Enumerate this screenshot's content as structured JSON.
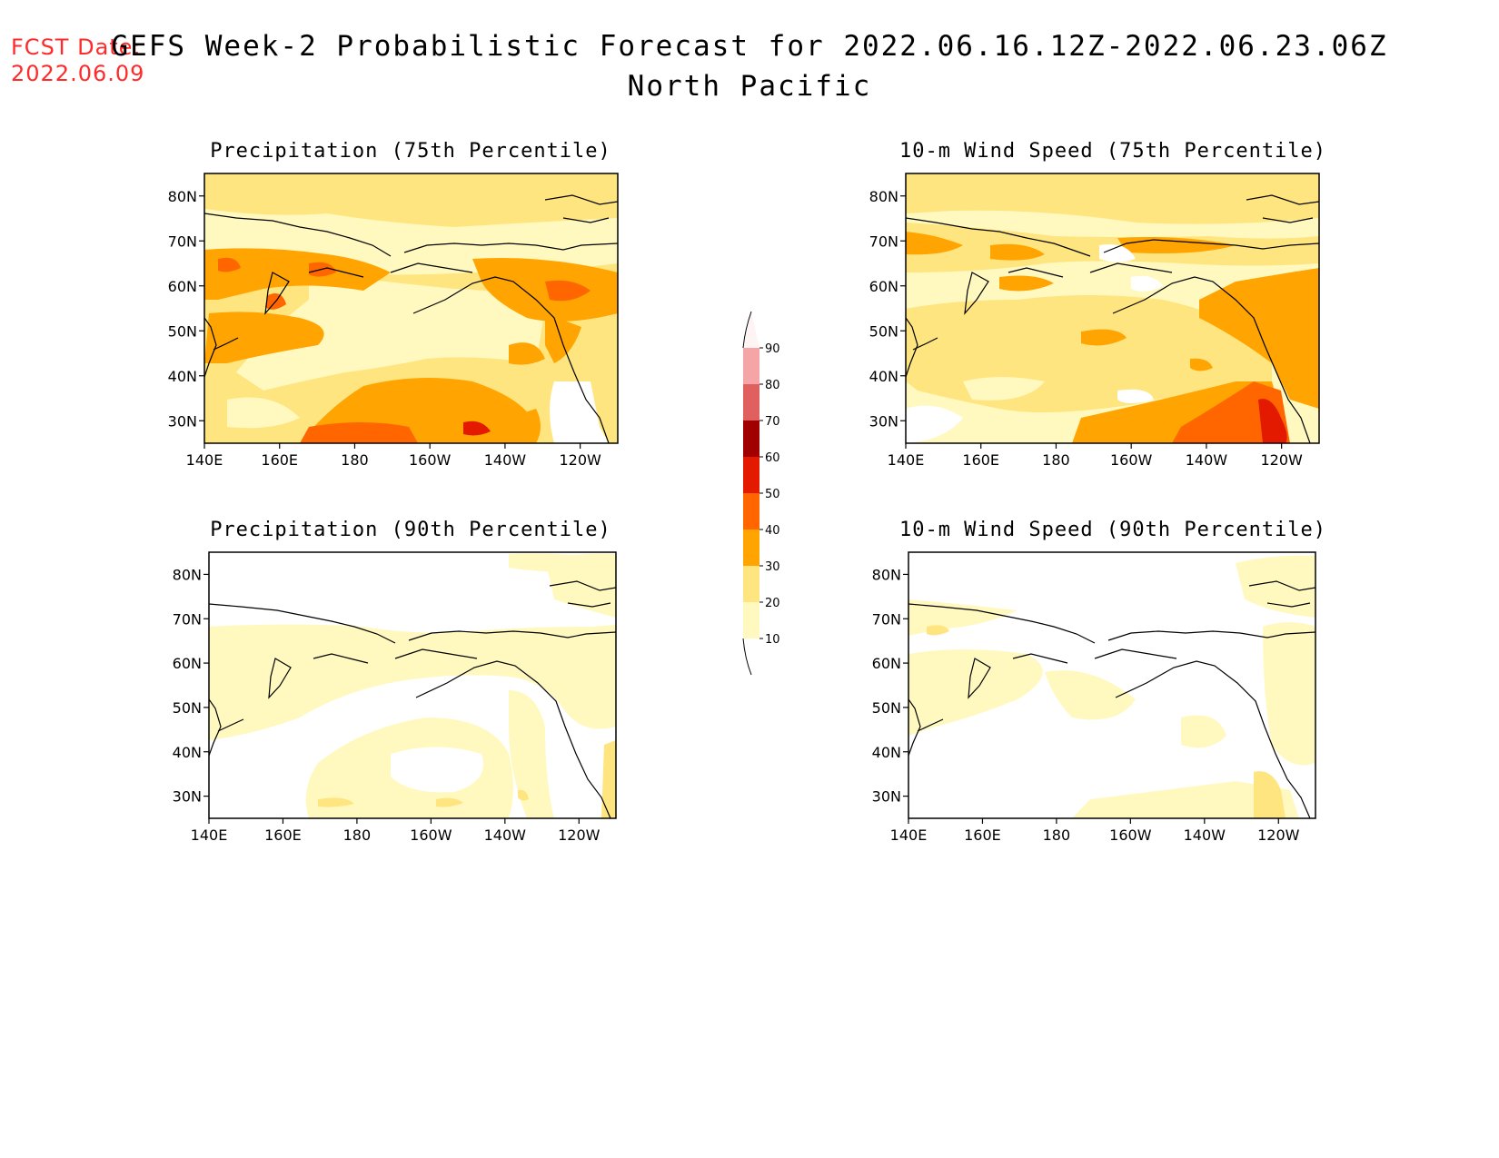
{
  "header": {
    "fcst_label": "FCST Date:",
    "fcst_date": "2022.06.09",
    "title": "GEFS Week-2 Probabilistic Forecast for 2022.06.16.12Z-2022.06.23.06Z",
    "subtitle": "North Pacific"
  },
  "panels": [
    {
      "title": "Precipitation (75th Percentile)",
      "intensity": "high"
    },
    {
      "title": "10-m Wind Speed (75th Percentile)",
      "intensity": "high"
    },
    {
      "title": "Precipitation (90th Percentile)",
      "intensity": "low"
    },
    {
      "title": "10-m Wind Speed (90th Percentile)",
      "intensity": "low"
    }
  ],
  "axes": {
    "lon_ticks": [
      "140E",
      "160E",
      "180",
      "160W",
      "140W",
      "120W"
    ],
    "lat_ticks": [
      "80N",
      "70N",
      "60N",
      "50N",
      "40N",
      "30N"
    ]
  },
  "colorbar": {
    "levels": [
      "10",
      "20",
      "30",
      "40",
      "50",
      "60",
      "70",
      "80",
      "90"
    ],
    "colors": [
      "#fff9c0",
      "#ffe57f",
      "#ffa400",
      "#ff6600",
      "#e31a00",
      "#a00000",
      "#e06060",
      "#f5a5a5",
      "#ffe5e5",
      "#fff4f4"
    ]
  }
}
